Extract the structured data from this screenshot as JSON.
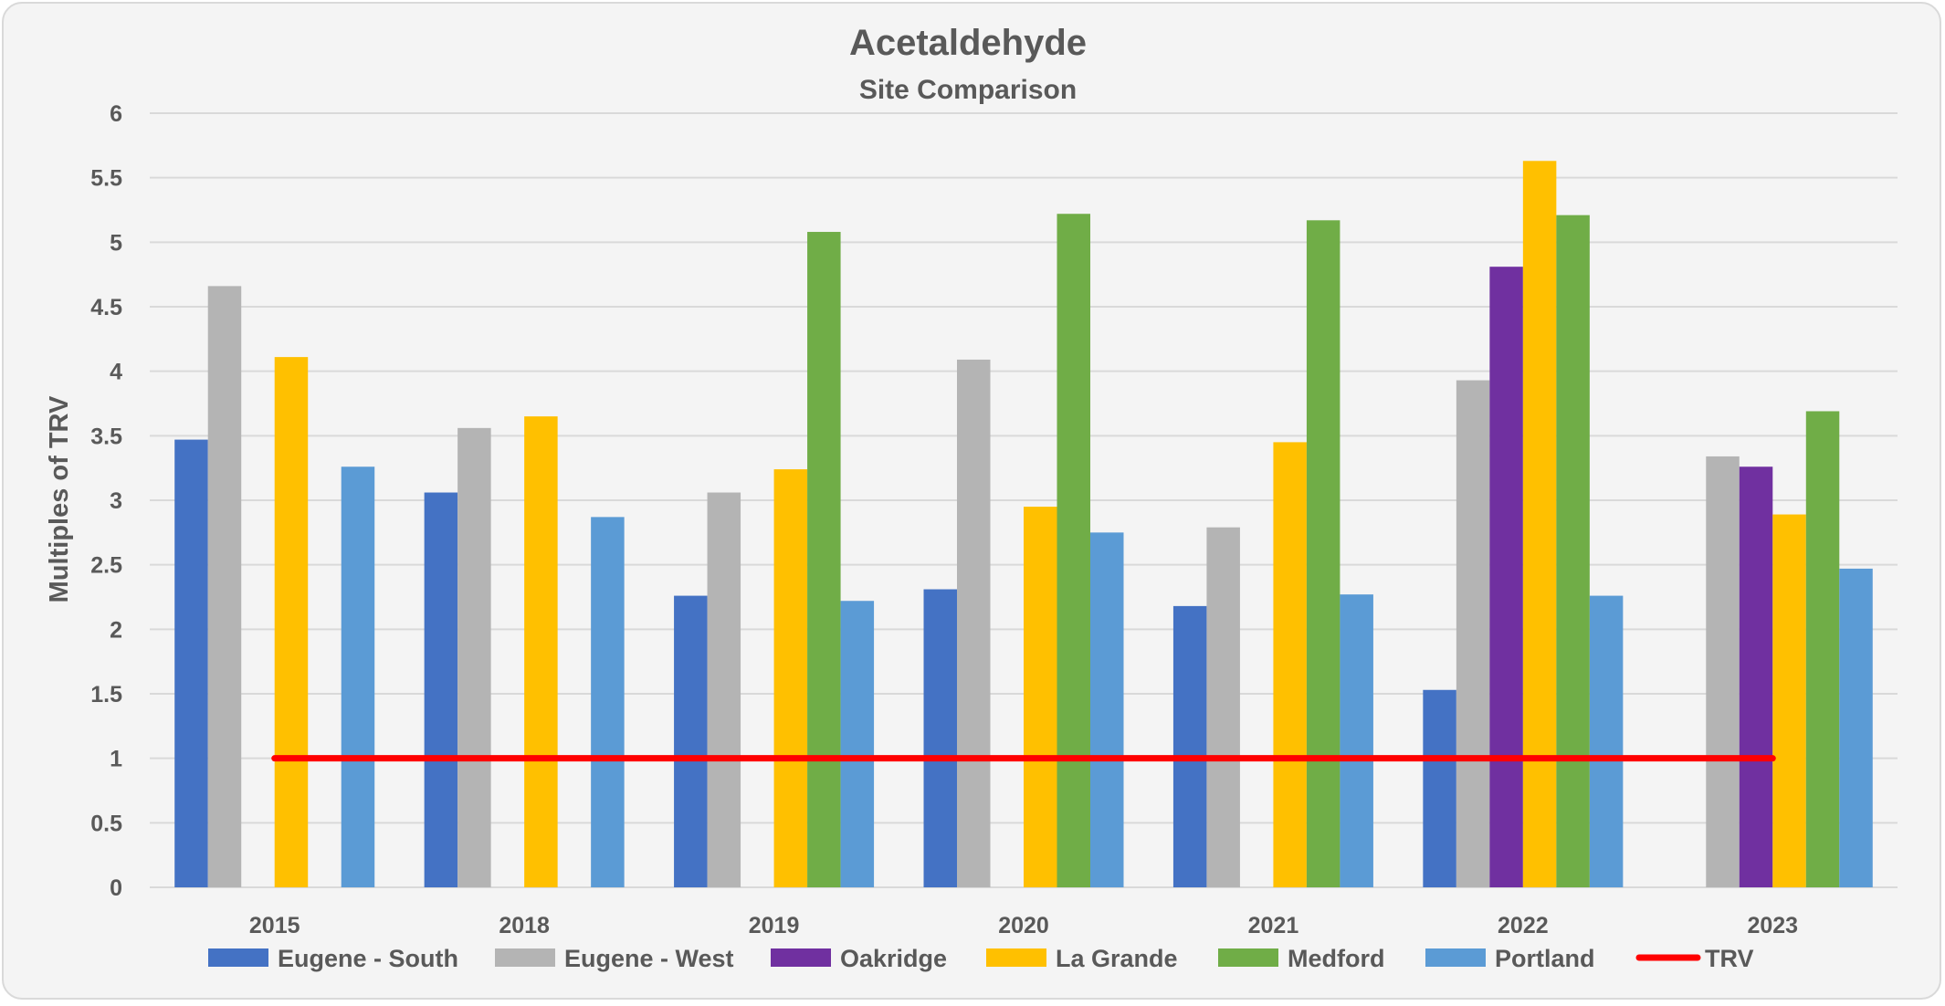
{
  "chart_data": {
    "type": "bar",
    "title": "Acetaldehyde",
    "subtitle": "Site Comparison",
    "xlabel": "",
    "ylabel": "Multiples of TRV",
    "ylim": [
      0,
      6
    ],
    "yticks": [
      "0",
      "0.5",
      "1",
      "1.5",
      "2",
      "2.5",
      "3",
      "3.5",
      "4",
      "4.5",
      "5",
      "5.5",
      "6"
    ],
    "grid": true,
    "legend_position": "bottom",
    "categories": [
      "2015",
      "2018",
      "2019",
      "2020",
      "2021",
      "2022",
      "2023"
    ],
    "series": [
      {
        "name": "Eugene - South",
        "color": "#4472c4",
        "values": [
          3.47,
          3.06,
          2.26,
          2.31,
          2.18,
          1.53,
          null
        ]
      },
      {
        "name": "Eugene - West",
        "color": "#b4b4b4",
        "values": [
          4.66,
          3.56,
          3.06,
          4.09,
          2.79,
          3.93,
          3.34
        ]
      },
      {
        "name": "Oakridge",
        "color": "#7030a0",
        "values": [
          null,
          null,
          null,
          null,
          null,
          4.81,
          3.26
        ]
      },
      {
        "name": "La Grande",
        "color": "#ffc000",
        "values": [
          4.11,
          3.65,
          3.24,
          2.95,
          3.45,
          5.63,
          2.89
        ]
      },
      {
        "name": "Medford",
        "color": "#70ad47",
        "values": [
          null,
          null,
          5.08,
          5.22,
          5.17,
          5.21,
          3.69
        ]
      },
      {
        "name": "Portland",
        "color": "#5b9bd5",
        "values": [
          3.26,
          2.87,
          2.22,
          2.75,
          2.27,
          2.26,
          2.47
        ]
      }
    ],
    "reference_line": {
      "name": "TRV",
      "value": 1,
      "color": "#ff0000"
    }
  }
}
